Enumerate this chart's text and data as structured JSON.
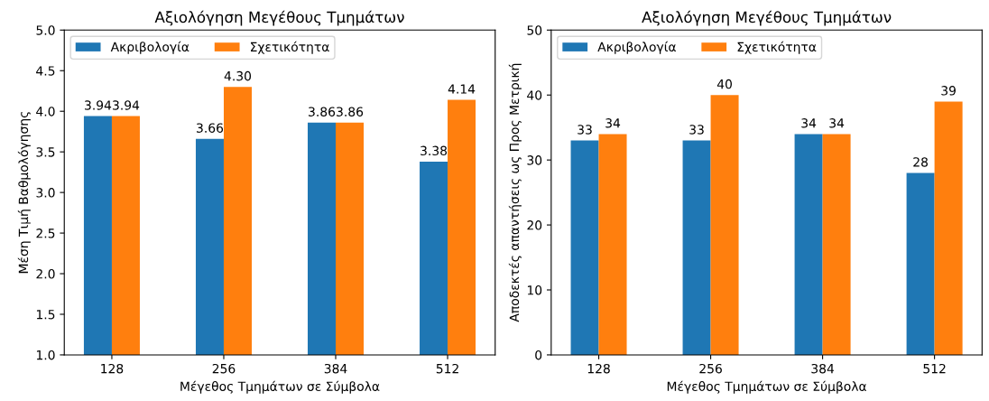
{
  "chart_data": [
    {
      "type": "bar",
      "title": "Αξιολόγηση Μεγέθους Τμημάτων",
      "xlabel": "Μέγεθος Τμημάτων σε Σύμβολα",
      "ylabel": "Μέση Τιμή Βαθμολόγησης",
      "categories": [
        "128",
        "256",
        "384",
        "512"
      ],
      "series": [
        {
          "name": "Ακριβολογία",
          "color": "#1f77b4",
          "values": [
            3.94,
            3.66,
            3.86,
            3.38
          ],
          "value_labels": [
            "3.94",
            "3.66",
            "3.86",
            "3.38"
          ]
        },
        {
          "name": "Σχετικότητα",
          "color": "#ff7f0e",
          "values": [
            3.94,
            4.3,
            3.86,
            4.14
          ],
          "value_labels": [
            "3.94",
            "4.30",
            "3.86",
            "4.14"
          ]
        }
      ],
      "ylim": [
        1,
        5
      ],
      "yticks": [
        {
          "value": 1,
          "label": "1.0"
        },
        {
          "value": 1.5,
          "label": "1.5"
        },
        {
          "value": 2,
          "label": "2.0"
        },
        {
          "value": 2.5,
          "label": "2.5"
        },
        {
          "value": 3,
          "label": "3.0"
        },
        {
          "value": 3.5,
          "label": "3.5"
        },
        {
          "value": 4,
          "label": "4.0"
        },
        {
          "value": 4.5,
          "label": "4.5"
        },
        {
          "value": 5,
          "label": "5.0"
        }
      ],
      "legend": "top left",
      "grid": false
    },
    {
      "type": "bar",
      "title": "Αξιολόγηση Μεγέθους Τμημάτων",
      "xlabel": "Μέγεθος Τμημάτων σε Σύμβολα",
      "ylabel": "Αποδεκτές απαντήσεις ως Προς Μετρική",
      "categories": [
        "128",
        "256",
        "384",
        "512"
      ],
      "series": [
        {
          "name": "Ακριβολογία",
          "color": "#1f77b4",
          "values": [
            33,
            33,
            34,
            28
          ]
        },
        {
          "name": "Σχετικότητα",
          "color": "#ff7f0e",
          "values": [
            34,
            40,
            34,
            39
          ]
        }
      ],
      "ylim": [
        0,
        50
      ],
      "yticks": [
        0,
        10,
        20,
        30,
        40,
        50
      ],
      "data_labels": true,
      "legend": "top left",
      "grid": false
    }
  ]
}
